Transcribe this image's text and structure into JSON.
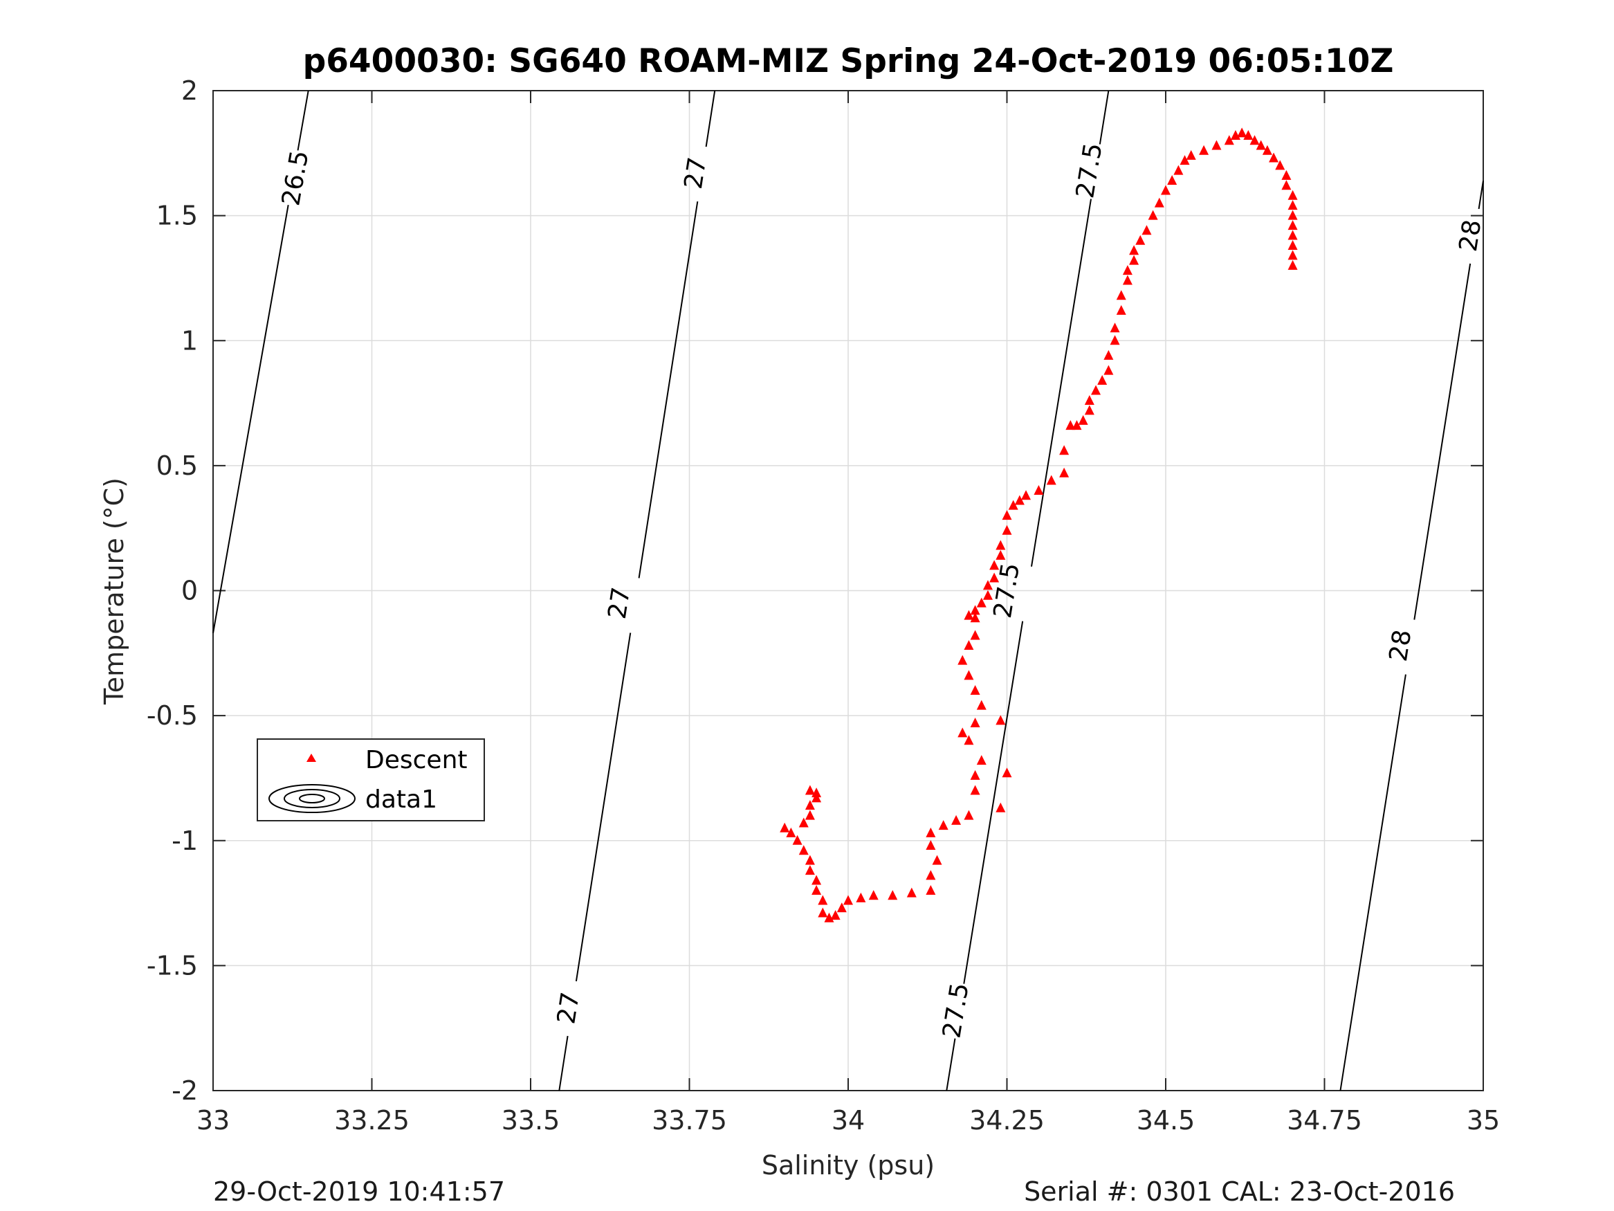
{
  "chart_data": {
    "type": "scatter",
    "title": "p6400030: SG640 ROAM-MIZ Spring 24-Oct-2019 06:05:10Z",
    "xlabel": "Salinity (psu)",
    "ylabel": "Temperature (°C)",
    "xlim": [
      33,
      35
    ],
    "ylim": [
      -2,
      2
    ],
    "x_ticks": [
      "33",
      "33.25",
      "33.5",
      "33.75",
      "34",
      "34.25",
      "34.5",
      "34.75",
      "35"
    ],
    "y_ticks": [
      "-2",
      "-1.5",
      "-1",
      "-0.5",
      "0",
      "0.5",
      "1",
      "1.5",
      "2"
    ],
    "grid": true,
    "legend_position": "lower-left",
    "legend": [
      "Descent",
      "data1"
    ],
    "series": [
      {
        "name": "Descent",
        "marker": "triangle",
        "color": "#ff0000",
        "points": [
          [
            34.7,
            1.3
          ],
          [
            34.7,
            1.34
          ],
          [
            34.7,
            1.38
          ],
          [
            34.7,
            1.42
          ],
          [
            34.7,
            1.46
          ],
          [
            34.7,
            1.5
          ],
          [
            34.7,
            1.54
          ],
          [
            34.7,
            1.58
          ],
          [
            34.69,
            1.62
          ],
          [
            34.69,
            1.66
          ],
          [
            34.68,
            1.7
          ],
          [
            34.67,
            1.73
          ],
          [
            34.66,
            1.76
          ],
          [
            34.65,
            1.78
          ],
          [
            34.64,
            1.8
          ],
          [
            34.63,
            1.82
          ],
          [
            34.62,
            1.83
          ],
          [
            34.61,
            1.82
          ],
          [
            34.6,
            1.8
          ],
          [
            34.58,
            1.78
          ],
          [
            34.56,
            1.76
          ],
          [
            34.54,
            1.74
          ],
          [
            34.53,
            1.72
          ],
          [
            34.52,
            1.68
          ],
          [
            34.51,
            1.64
          ],
          [
            34.5,
            1.6
          ],
          [
            34.49,
            1.55
          ],
          [
            34.48,
            1.5
          ],
          [
            34.47,
            1.44
          ],
          [
            34.46,
            1.4
          ],
          [
            34.45,
            1.36
          ],
          [
            34.45,
            1.32
          ],
          [
            34.44,
            1.28
          ],
          [
            34.44,
            1.24
          ],
          [
            34.43,
            1.18
          ],
          [
            34.43,
            1.12
          ],
          [
            34.42,
            1.05
          ],
          [
            34.42,
            1.0
          ],
          [
            34.41,
            0.94
          ],
          [
            34.41,
            0.88
          ],
          [
            34.4,
            0.84
          ],
          [
            34.39,
            0.8
          ],
          [
            34.38,
            0.76
          ],
          [
            34.38,
            0.72
          ],
          [
            34.37,
            0.68
          ],
          [
            34.36,
            0.66
          ],
          [
            34.35,
            0.66
          ],
          [
            34.34,
            0.56
          ],
          [
            34.34,
            0.47
          ],
          [
            34.32,
            0.44
          ],
          [
            34.3,
            0.4
          ],
          [
            34.28,
            0.38
          ],
          [
            34.27,
            0.36
          ],
          [
            34.26,
            0.34
          ],
          [
            34.25,
            0.3
          ],
          [
            34.25,
            0.24
          ],
          [
            34.24,
            0.18
          ],
          [
            34.24,
            0.14
          ],
          [
            34.23,
            0.1
          ],
          [
            34.23,
            0.05
          ],
          [
            34.22,
            0.02
          ],
          [
            34.22,
            -0.02
          ],
          [
            34.21,
            -0.05
          ],
          [
            34.2,
            -0.08
          ],
          [
            34.2,
            -0.11
          ],
          [
            34.19,
            -0.1
          ],
          [
            34.2,
            -0.18
          ],
          [
            34.19,
            -0.22
          ],
          [
            34.18,
            -0.28
          ],
          [
            34.19,
            -0.34
          ],
          [
            34.2,
            -0.4
          ],
          [
            34.21,
            -0.46
          ],
          [
            34.2,
            -0.53
          ],
          [
            34.19,
            -0.6
          ],
          [
            34.18,
            -0.57
          ],
          [
            34.21,
            -0.68
          ],
          [
            34.2,
            -0.74
          ],
          [
            34.2,
            -0.8
          ],
          [
            34.24,
            -0.52
          ],
          [
            34.25,
            -0.73
          ],
          [
            34.24,
            -0.87
          ],
          [
            34.19,
            -0.9
          ],
          [
            34.17,
            -0.92
          ],
          [
            34.15,
            -0.94
          ],
          [
            34.13,
            -0.97
          ],
          [
            34.13,
            -1.02
          ],
          [
            34.14,
            -1.08
          ],
          [
            34.13,
            -1.14
          ],
          [
            34.13,
            -1.2
          ],
          [
            34.1,
            -1.21
          ],
          [
            34.07,
            -1.22
          ],
          [
            34.04,
            -1.22
          ],
          [
            34.02,
            -1.23
          ],
          [
            34.0,
            -1.24
          ],
          [
            33.99,
            -1.27
          ],
          [
            33.98,
            -1.3
          ],
          [
            33.97,
            -1.31
          ],
          [
            33.96,
            -1.29
          ],
          [
            33.96,
            -1.24
          ],
          [
            33.95,
            -1.2
          ],
          [
            33.95,
            -1.16
          ],
          [
            33.94,
            -1.12
          ],
          [
            33.94,
            -1.08
          ],
          [
            33.93,
            -1.04
          ],
          [
            33.92,
            -1.0
          ],
          [
            33.91,
            -0.97
          ],
          [
            33.9,
            -0.95
          ],
          [
            33.93,
            -0.93
          ],
          [
            33.94,
            -0.9
          ],
          [
            33.94,
            -0.86
          ],
          [
            33.95,
            -0.83
          ],
          [
            33.94,
            -0.8
          ],
          [
            33.95,
            -0.81
          ]
        ]
      }
    ],
    "contours": [
      {
        "label": "26.5",
        "points": [
          [
            33.0,
            -0.17
          ],
          [
            33.15,
            2.0
          ]
        ],
        "label_positions": [
          [
            33.13,
            1.65
          ]
        ]
      },
      {
        "label": "27",
        "points": [
          [
            33.545,
            -2.0
          ],
          [
            33.79,
            2.0
          ]
        ],
        "label_positions": [
          [
            33.56,
            -1.67
          ],
          [
            33.64,
            -0.05
          ],
          [
            33.76,
            1.67
          ]
        ]
      },
      {
        "label": "27.5",
        "points": [
          [
            34.155,
            -2.0
          ],
          [
            34.41,
            2.0
          ]
        ],
        "label_positions": [
          [
            34.17,
            -1.68
          ],
          [
            34.25,
            0.0
          ],
          [
            34.38,
            1.68
          ]
        ]
      },
      {
        "label": "28",
        "points": [
          [
            34.775,
            -2.0
          ],
          [
            35.0,
            1.64
          ]
        ],
        "label_positions": [
          [
            34.87,
            -0.22
          ],
          [
            34.98,
            1.42
          ]
        ]
      }
    ]
  },
  "footer": {
    "left": "29-Oct-2019 10:41:57",
    "right": "Serial #: 0301  CAL: 23-Oct-2016"
  }
}
